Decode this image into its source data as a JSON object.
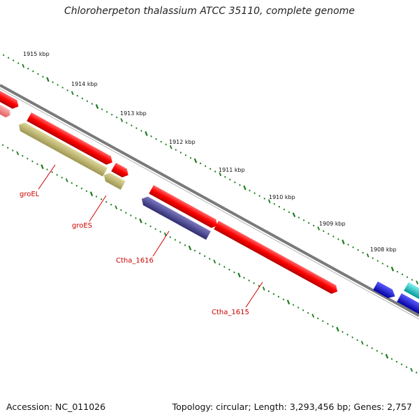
{
  "title": "Chloroherpeton thalassium ATCC 35110, complete genome",
  "footer": {
    "accession": "Accession: NC_011026",
    "summary": "Topology: circular; Length: 3,293,456 bp; Genes: 2,757"
  },
  "scale_labels": [
    "1915 kbp",
    "1914 kbp",
    "1913 kbp",
    "1912 kbp",
    "1911 kbp",
    "1910 kbp",
    "1909 kbp",
    "1908 kbp"
  ],
  "genes": [
    {
      "label": "groEL",
      "color": "#c8c07a",
      "strand": "minus"
    },
    {
      "label": "groES",
      "color": "#c8c07a",
      "strand": "minus"
    },
    {
      "label": "Ctha_1616",
      "color": "#4c4896",
      "strand": "minus"
    },
    {
      "label": "Ctha_1615",
      "color": "#ff0000",
      "strand": "plus"
    }
  ],
  "colors": {
    "backbone": "#808080",
    "cds_plus": "#ff0000",
    "cds_minus": "#ff7070",
    "chaperone": "#c8c07a",
    "other_minus": "#4c4896",
    "blue_gene": "#0000ee",
    "cyan_gene": "#00c8c8",
    "tick": "#1a7a1a",
    "label_line": "#cc0000"
  }
}
